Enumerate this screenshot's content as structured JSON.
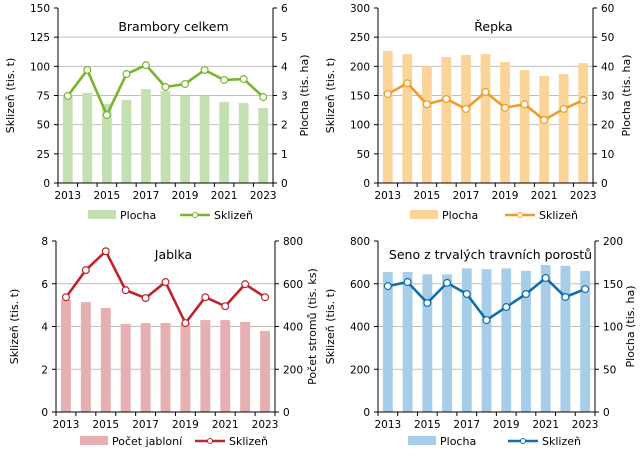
{
  "chart_data": [
    {
      "type": "bar",
      "title": "Brambory  celkem",
      "xlabel": "",
      "ylabel": "Sklizeň (tis. t)",
      "y2label": "Plocha (tis. ha)",
      "ylim": [
        0,
        150
      ],
      "yticks": [
        "0",
        "25",
        "50",
        "75",
        "100",
        "125",
        "150"
      ],
      "y2lim": [
        0,
        6
      ],
      "y2ticks": [
        "0",
        "1",
        "2",
        "3",
        "4",
        "5",
        "6"
      ],
      "categories": [
        "2013",
        "2014",
        "2015",
        "2016",
        "2017",
        "2018",
        "2019",
        "2020",
        "2021",
        "2022",
        "2023"
      ],
      "xtick_labels": [
        "2013",
        "2015",
        "2017",
        "2019",
        "2021",
        "2023"
      ],
      "grid": true,
      "legend_position": "bottom",
      "series": [
        {
          "name": "Plocha",
          "kind": "bar",
          "axis": "right",
          "color": "#c5e0b0",
          "values": [
            2.98,
            3.09,
            2.71,
            2.85,
            3.22,
            3.15,
            2.98,
            2.98,
            2.78,
            2.74,
            2.57
          ]
        },
        {
          "name": "Sklizeň",
          "kind": "line",
          "axis": "left",
          "color": "#7ab32e",
          "values": [
            74.6,
            96.9,
            58.3,
            93.4,
            101.0,
            82.3,
            84.9,
            96.9,
            88.3,
            89.1,
            73.7
          ]
        }
      ]
    },
    {
      "type": "bar",
      "title": "Řepka",
      "xlabel": "",
      "ylabel": "Sklizeň (tis. t)",
      "y2label": "Plocha (tis. ha)",
      "ylim": [
        0,
        300
      ],
      "yticks": [
        "0",
        "50",
        "100",
        "150",
        "200",
        "250",
        "300"
      ],
      "y2lim": [
        0,
        60
      ],
      "y2ticks": [
        "0",
        "10",
        "20",
        "30",
        "40",
        "50",
        "60"
      ],
      "categories": [
        "2013",
        "2014",
        "2015",
        "2016",
        "2017",
        "2018",
        "2019",
        "2020",
        "2021",
        "2022",
        "2023"
      ],
      "xtick_labels": [
        "2013",
        "2015",
        "2017",
        "2019",
        "2021",
        "2023"
      ],
      "grid": true,
      "legend_position": "bottom",
      "series": [
        {
          "name": "Plocha",
          "kind": "bar",
          "axis": "right",
          "color": "#fbd49a",
          "values": [
            45.3,
            44.2,
            40.0,
            43.2,
            43.9,
            44.2,
            41.5,
            38.7,
            36.7,
            37.4,
            41.1
          ]
        },
        {
          "name": "Sklizeň",
          "kind": "line",
          "axis": "left",
          "color": "#f39c24",
          "values": [
            152.6,
            171.0,
            135.0,
            144.0,
            127.0,
            156.0,
            129.0,
            135.0,
            108.0,
            127.0,
            142.0
          ]
        }
      ]
    },
    {
      "type": "bar",
      "title": "Jablka",
      "xlabel": "",
      "ylabel": "Sklizeň (tis. t)",
      "y2label": "Počet stromů (tis. ks)",
      "ylim": [
        0,
        8
      ],
      "yticks": [
        "0",
        "2",
        "4",
        "6",
        "8"
      ],
      "y2lim": [
        0,
        800
      ],
      "y2ticks": [
        "0",
        "200",
        "400",
        "600",
        "800"
      ],
      "categories": [
        "2013",
        "2014",
        "2015",
        "2016",
        "2017",
        "2018",
        "2019",
        "2020",
        "2021",
        "2022",
        "2023"
      ],
      "xtick_labels": [
        "2013",
        "2015",
        "2017",
        "2019",
        "2021",
        "2023"
      ],
      "grid": true,
      "legend_position": "bottom",
      "series": [
        {
          "name": "Počet jabloní",
          "kind": "bar",
          "axis": "right",
          "color": "#e6b0b3",
          "values": [
            524,
            514,
            487,
            412,
            416,
            416,
            416,
            430,
            430,
            421,
            379
          ]
        },
        {
          "name": "Sklizeň",
          "kind": "line",
          "axis": "left",
          "color": "#c0232c",
          "values": [
            5.37,
            6.64,
            7.52,
            5.7,
            5.33,
            6.08,
            4.16,
            5.37,
            4.95,
            5.98,
            5.37
          ]
        }
      ]
    },
    {
      "type": "bar",
      "title": "Seno z trvalých  travních  porostů",
      "xlabel": "",
      "ylabel": "Sklizeň (tis. t)",
      "y2label": "Plocha (tis. ha)",
      "ylim": [
        0,
        800
      ],
      "yticks": [
        "0",
        "200",
        "400",
        "600",
        "800"
      ],
      "y2lim": [
        0,
        200
      ],
      "y2ticks": [
        "0",
        "50",
        "100",
        "150",
        "200"
      ],
      "categories": [
        "2013",
        "2014",
        "2015",
        "2016",
        "2017",
        "2018",
        "2019",
        "2020",
        "2021",
        "2022",
        "2023"
      ],
      "xtick_labels": [
        "2013",
        "2015",
        "2017",
        "2019",
        "2021",
        "2023"
      ],
      "grid": true,
      "legend_position": "bottom",
      "series": [
        {
          "name": "Plocha",
          "kind": "bar",
          "axis": "right",
          "color": "#a8cde8",
          "values": [
            163.7,
            163.7,
            161.0,
            161.0,
            168.0,
            167.0,
            168.0,
            165.0,
            172.0,
            171.0,
            165.0
          ]
        },
        {
          "name": "Sklizeň",
          "kind": "line",
          "axis": "left",
          "color": "#0f6eb0",
          "values": [
            589,
            608,
            510,
            604,
            552,
            430,
            491,
            552,
            627,
            538,
            575
          ]
        }
      ]
    }
  ]
}
